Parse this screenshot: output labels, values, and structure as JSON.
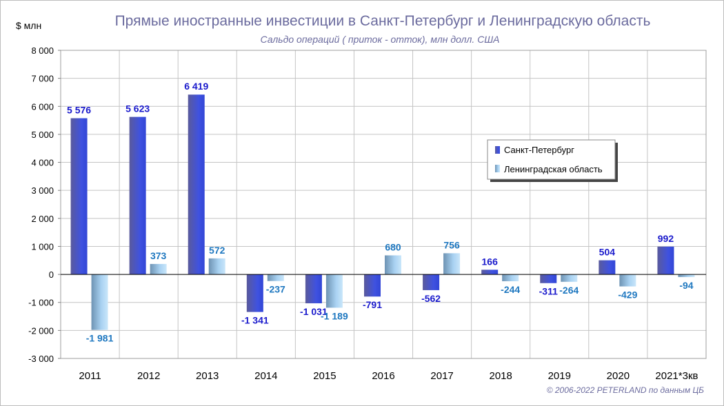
{
  "chart_data": {
    "type": "bar",
    "title": "Прямые иностранные инвестиции в Санкт-Петербург и Ленинградскую область",
    "subtitle": "Сальдо операций ( приток - отток), млн долл. США",
    "ylabel": "$ млн",
    "xlabel": "",
    "ylim": [
      -3000,
      8000
    ],
    "ytick_step": 1000,
    "ytick_labels": [
      "-3 000",
      "-2 000",
      "-1 000",
      "0",
      "1 000",
      "2 000",
      "3 000",
      "4 000",
      "5 000",
      "6 000",
      "7 000",
      "8 000"
    ],
    "grid": true,
    "legend_position": "right",
    "categories": [
      "2011",
      "2012",
      "2013",
      "2014",
      "2015",
      "2016",
      "2017",
      "2018",
      "2019",
      "2020",
      "2021*3кв"
    ],
    "series": [
      {
        "name": "Санкт-Петербург",
        "color": "#3b4fd6",
        "label_color": "#1a1acc",
        "values": [
          5576,
          5623,
          6419,
          -1341,
          -1031,
          -791,
          -562,
          166,
          -311,
          504,
          992
        ],
        "labels": [
          "5 576",
          "5 623",
          "6 419",
          "-1 341",
          "-1 031",
          "-791",
          "-562",
          "166",
          "-311",
          "504",
          "992"
        ]
      },
      {
        "name": "Ленинградская область",
        "color": "#8ec4ea",
        "label_color": "#1f78c0",
        "values": [
          -1981,
          373,
          572,
          -237,
          -1189,
          680,
          756,
          -244,
          -264,
          -429,
          -94
        ],
        "labels": [
          "-1 981",
          "373",
          "572",
          "-237",
          "-1 189",
          "680",
          "756",
          "-244",
          "-264",
          "-429",
          "-94"
        ]
      }
    ],
    "credit": "© 2006-2022 PETERLAND  по данным ЦБ"
  }
}
